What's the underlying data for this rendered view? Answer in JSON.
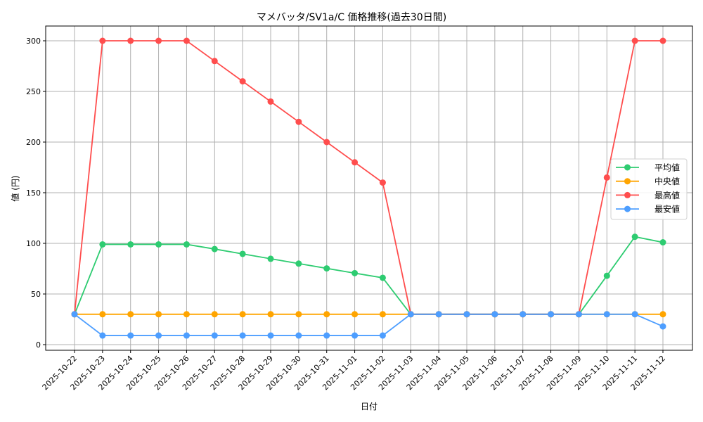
{
  "chart_data": {
    "type": "line",
    "title": "マメバッタ/SV1a/C 価格推移(過去30日間)",
    "xlabel": "日付",
    "ylabel": "値 (円)",
    "ylim": [
      -8,
      315
    ],
    "yticks": [
      0,
      50,
      100,
      150,
      200,
      250,
      300
    ],
    "grid": true,
    "legend_position": "center right",
    "x": [
      "2025-10-22",
      "2025-10-23",
      "2025-10-24",
      "2025-10-25",
      "2025-10-26",
      "2025-10-27",
      "2025-10-28",
      "2025-10-29",
      "2025-10-30",
      "2025-10-31",
      "2025-11-01",
      "2025-11-02",
      "2025-11-03",
      "2025-11-04",
      "2025-11-05",
      "2025-11-06",
      "2025-11-07",
      "2025-11-08",
      "2025-11-09",
      "2025-11-10",
      "2025-11-11",
      "2025-11-12"
    ],
    "series": [
      {
        "name": "平均値",
        "color": "#2ecc71",
        "values": [
          30,
          99,
          99,
          99,
          99,
          94.4,
          89.6,
          84.8,
          80,
          75.3,
          70.6,
          66,
          30,
          30,
          30,
          30,
          30,
          30,
          30,
          68,
          106.5,
          101
        ]
      },
      {
        "name": "中央値",
        "color": "#ffa500",
        "values": [
          30,
          30,
          30,
          30,
          30,
          30,
          30,
          30,
          30,
          30,
          30,
          30,
          30,
          30,
          30,
          30,
          30,
          30,
          30,
          30,
          30,
          30
        ]
      },
      {
        "name": "最高値",
        "color": "#ff4d4d",
        "values": [
          30,
          300,
          300,
          300,
          300,
          280,
          260,
          240,
          220,
          200,
          180,
          160,
          30,
          30,
          30,
          30,
          30,
          30,
          30,
          165,
          300,
          300
        ]
      },
      {
        "name": "最安値",
        "color": "#4d9eff",
        "values": [
          30,
          9,
          9,
          9,
          9,
          9,
          9,
          9,
          9,
          9,
          9,
          9,
          30,
          30,
          30,
          30,
          30,
          30,
          30,
          30,
          30,
          18
        ]
      }
    ]
  }
}
